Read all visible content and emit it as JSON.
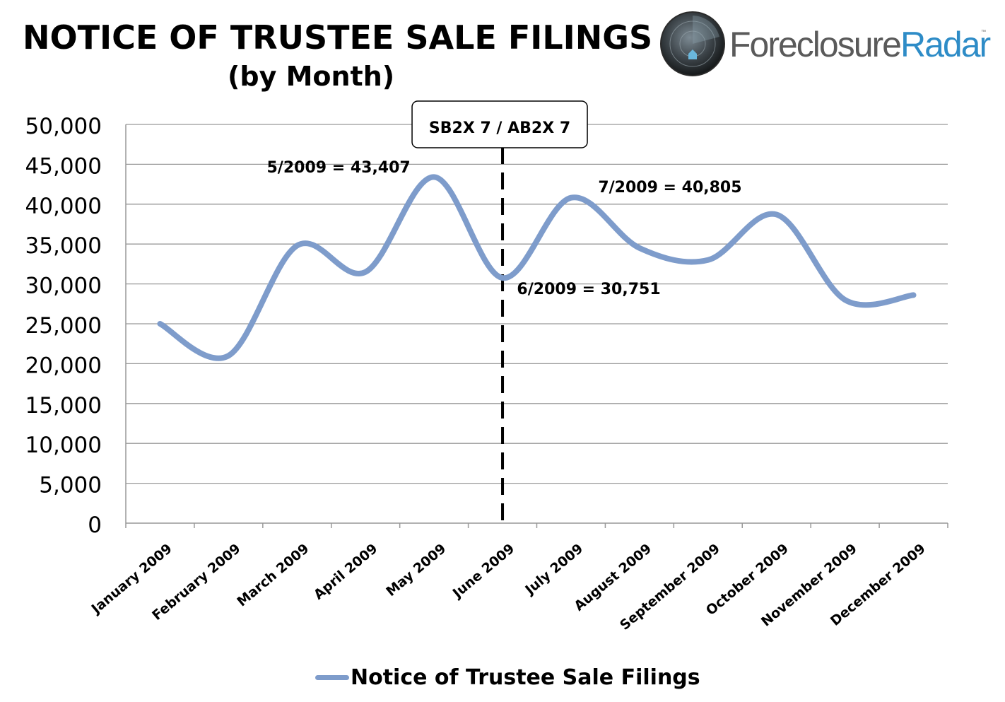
{
  "header": {
    "title": "NOTICE OF TRUSTEE SALE FILINGS",
    "subtitle": "(by Month)"
  },
  "logo": {
    "name_part1": "Foreclosure",
    "name_part2": "Radar",
    "trademark": "™"
  },
  "colors": {
    "series": "#7e9ccb",
    "grid": "#999999",
    "text": "#000000",
    "logo_gray": "#5a5a5a",
    "logo_blue": "#2e8cc7"
  },
  "chart_data": {
    "type": "line",
    "smooth": true,
    "categories": [
      "January 2009",
      "February 2009",
      "March 2009",
      "April 2009",
      "May 2009",
      "June 2009",
      "July 2009",
      "August 2009",
      "September 2009",
      "October 2009",
      "November 2009",
      "December 2009"
    ],
    "series": [
      {
        "name": "Notice of Trustee Sale Filings",
        "values": [
          25000,
          21000,
          34800,
          31500,
          43407,
          30751,
          40805,
          34500,
          33000,
          38700,
          28000,
          28600
        ]
      }
    ],
    "ylim": [
      0,
      50000
    ],
    "yticks": [
      "0",
      "5,000",
      "10,000",
      "15,000",
      "20,000",
      "25,000",
      "30,000",
      "35,000",
      "40,000",
      "45,000",
      "50,000"
    ],
    "grid": true,
    "legend": "bottom",
    "annotations": [
      {
        "text": "5/2009 = 43,407",
        "category": "May 2009"
      },
      {
        "text": "6/2009 = 30,751",
        "category": "June 2009"
      },
      {
        "text": "7/2009 = 40,805",
        "category": "July 2009"
      }
    ],
    "event_marker": {
      "label": "SB2X 7 / AB2X 7",
      "category": "June 2009",
      "style": "dashed"
    }
  }
}
